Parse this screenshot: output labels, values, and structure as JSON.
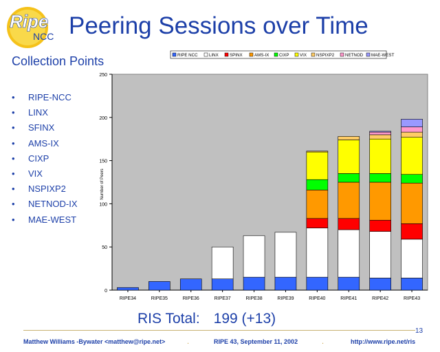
{
  "logo": {
    "text_main": "Ripe",
    "text_sub": "NCC"
  },
  "title": "Peering Sessions over Time",
  "subtitle": "Collection Points",
  "collection_points": [
    "RIPE-NCC",
    "LINX",
    "SFINX",
    "AMS-IX",
    "CIXP",
    "VIX",
    "NSPIXP2",
    "NETNOD-IX",
    "MAE-WEST"
  ],
  "bullet": "•",
  "chart_data": {
    "type": "bar",
    "stacked": true,
    "categories": [
      "RIPE34",
      "RIPE35",
      "RIPE36",
      "RIPE37",
      "RIPE38",
      "RIPE39",
      "RIPE40",
      "RIPE41",
      "RIPE42",
      "RIPE43"
    ],
    "ylabel": "Number of Peers",
    "ylim": [
      0,
      250
    ],
    "yticks": [
      0,
      50,
      100,
      150,
      200,
      250
    ],
    "legend_position": "top",
    "series": [
      {
        "name": "RIPE NCC",
        "color": "#3366ff",
        "values": [
          3,
          10,
          13,
          13,
          15,
          15,
          15,
          15,
          14,
          14
        ]
      },
      {
        "name": "LINX",
        "color": "#ffffff",
        "values": [
          0,
          0,
          0,
          37,
          48,
          52,
          57,
          55,
          54,
          45
        ]
      },
      {
        "name": "SPINX",
        "color": "#ff0000",
        "values": [
          0,
          0,
          0,
          0,
          0,
          0,
          11,
          13,
          13,
          18
        ]
      },
      {
        "name": "AMS-IX",
        "color": "#ff9900",
        "values": [
          0,
          0,
          0,
          0,
          0,
          0,
          33,
          42,
          44,
          47
        ]
      },
      {
        "name": "CIXP",
        "color": "#00ff00",
        "values": [
          0,
          0,
          0,
          0,
          0,
          0,
          12,
          10,
          10,
          10
        ]
      },
      {
        "name": "VIX",
        "color": "#ffff00",
        "values": [
          0,
          0,
          0,
          0,
          0,
          0,
          32,
          39,
          40,
          43
        ]
      },
      {
        "name": "NSPIXP2",
        "color": "#ffcc66",
        "values": [
          0,
          0,
          0,
          0,
          0,
          0,
          1,
          4,
          5,
          6
        ]
      },
      {
        "name": "NETNOD",
        "color": "#ff99cc",
        "values": [
          0,
          0,
          0,
          0,
          0,
          0,
          0,
          0,
          3,
          6
        ]
      },
      {
        "name": "MAE-WEST",
        "color": "#9999ff",
        "values": [
          0,
          0,
          0,
          0,
          0,
          0,
          0,
          0,
          1,
          9
        ]
      }
    ],
    "plot_background": "#c0c0c0",
    "grid": false
  },
  "ris_total": {
    "label": "RIS Total:",
    "value": "199 (+13)"
  },
  "slide_number": "13",
  "footer": {
    "author": "Matthew Williams -Bywater <matthew@ripe.net>",
    "event": "RIPE 43, September 11, 2002",
    "url": "http://www.ripe.net/ris",
    "separator": "."
  }
}
